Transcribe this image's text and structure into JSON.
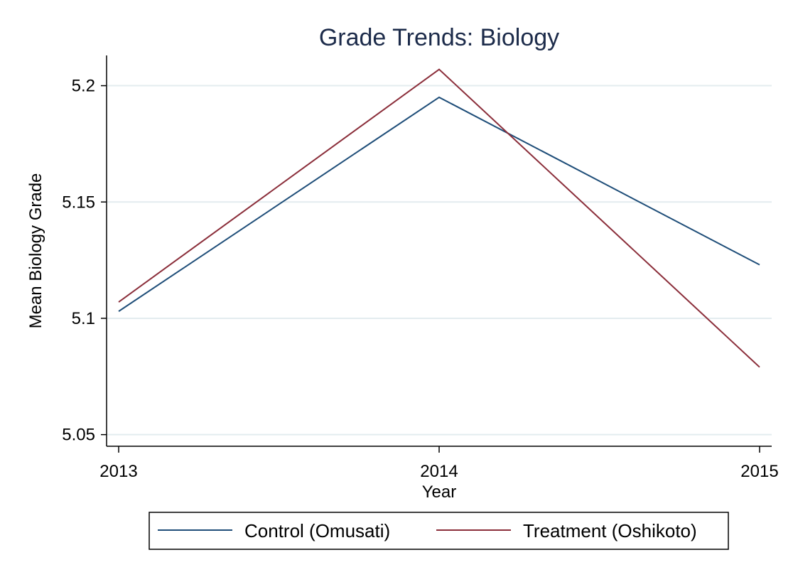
{
  "chart_data": {
    "type": "line",
    "title": "Grade Trends: Biology",
    "xlabel": "Year",
    "ylabel": "Mean Biology Grade",
    "x": [
      2013,
      2014,
      2015
    ],
    "x_tick_labels": [
      "2013",
      "2014",
      "2015"
    ],
    "y_ticks": [
      5.05,
      5.1,
      5.15,
      5.2
    ],
    "y_tick_labels": [
      "5.05",
      "5.1",
      "5.15",
      "5.2"
    ],
    "ylim": [
      5.045,
      5.213
    ],
    "xlim": [
      2013,
      2015
    ],
    "grid": "horizontal",
    "legend_position": "bottom",
    "series": [
      {
        "name": "Control (Omusati)",
        "color": "#1f4e79",
        "values": [
          5.103,
          5.195,
          5.123
        ]
      },
      {
        "name": "Treatment (Oshikoto)",
        "color": "#8b2e3a",
        "values": [
          5.107,
          5.207,
          5.079
        ]
      }
    ]
  }
}
